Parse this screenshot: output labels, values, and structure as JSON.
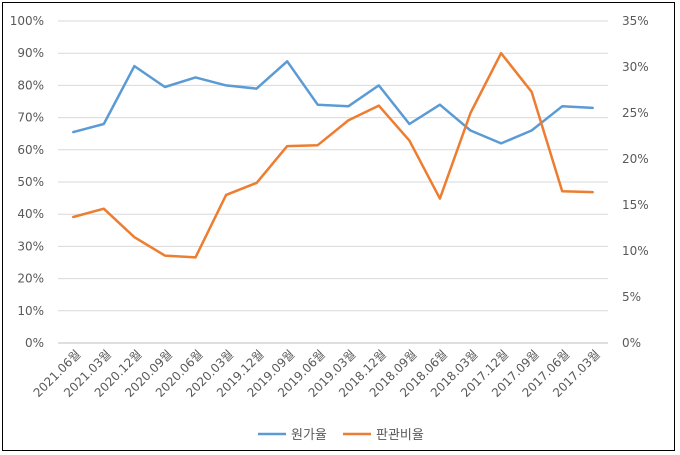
{
  "chart_data": {
    "type": "line",
    "categories": [
      "2021.06월",
      "2021.03월",
      "2020.12월",
      "2020.09월",
      "2020.06월",
      "2020.03월",
      "2019.12월",
      "2019.09월",
      "2019.06월",
      "2019.03월",
      "2018.12월",
      "2018.09월",
      "2018.06월",
      "2018.03월",
      "2017.12월",
      "2017.09월",
      "2017.06월",
      "2017.03월"
    ],
    "series": [
      {
        "name": "원가율",
        "axis": "left",
        "color": "#5B9BD5",
        "values": [
          65.5,
          68,
          86,
          79.5,
          82.5,
          80,
          79,
          87.5,
          74,
          73.5,
          80,
          68,
          74,
          66,
          62,
          66,
          73.5,
          73
        ]
      },
      {
        "name": "판관비율",
        "axis": "right",
        "color": "#ED7D31",
        "values": [
          13.7,
          14.6,
          11.5,
          9.5,
          9.3,
          16.1,
          17.4,
          21.4,
          21.5,
          24.2,
          25.8,
          22,
          15.7,
          25,
          31.5,
          27.3,
          16.5,
          16.4
        ]
      }
    ],
    "y_left": {
      "min": 0,
      "max": 100,
      "step": 10,
      "ticks": [
        "0%",
        "10%",
        "20%",
        "30%",
        "40%",
        "50%",
        "60%",
        "70%",
        "80%",
        "90%",
        "100%"
      ]
    },
    "y_right": {
      "min": 0,
      "max": 35,
      "step": 5,
      "ticks": [
        "0%",
        "5%",
        "10%",
        "15%",
        "20%",
        "25%",
        "30%",
        "35%"
      ]
    },
    "grid": true,
    "legend": "bottom"
  }
}
